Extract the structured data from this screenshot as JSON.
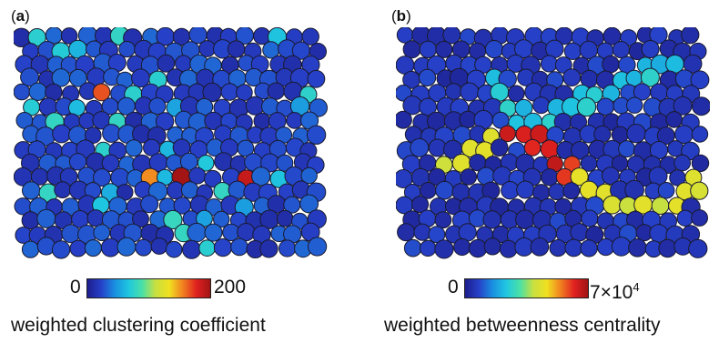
{
  "panels": [
    {
      "label": "a",
      "colorbar": {
        "min": "0",
        "max": "200"
      },
      "caption": "weighted clustering coefficient"
    },
    {
      "label": "b",
      "colorbar": {
        "min": "0",
        "max_base": "7×10",
        "max_exp": "4"
      },
      "caption": "weighted betweenness centrality"
    }
  ],
  "colormap": [
    "#1e1e8c",
    "#2640c8",
    "#1a8ee0",
    "#1fc6e0",
    "#48e0a8",
    "#c8e040",
    "#f0e020",
    "#f08020",
    "#e02020",
    "#a01414"
  ]
}
